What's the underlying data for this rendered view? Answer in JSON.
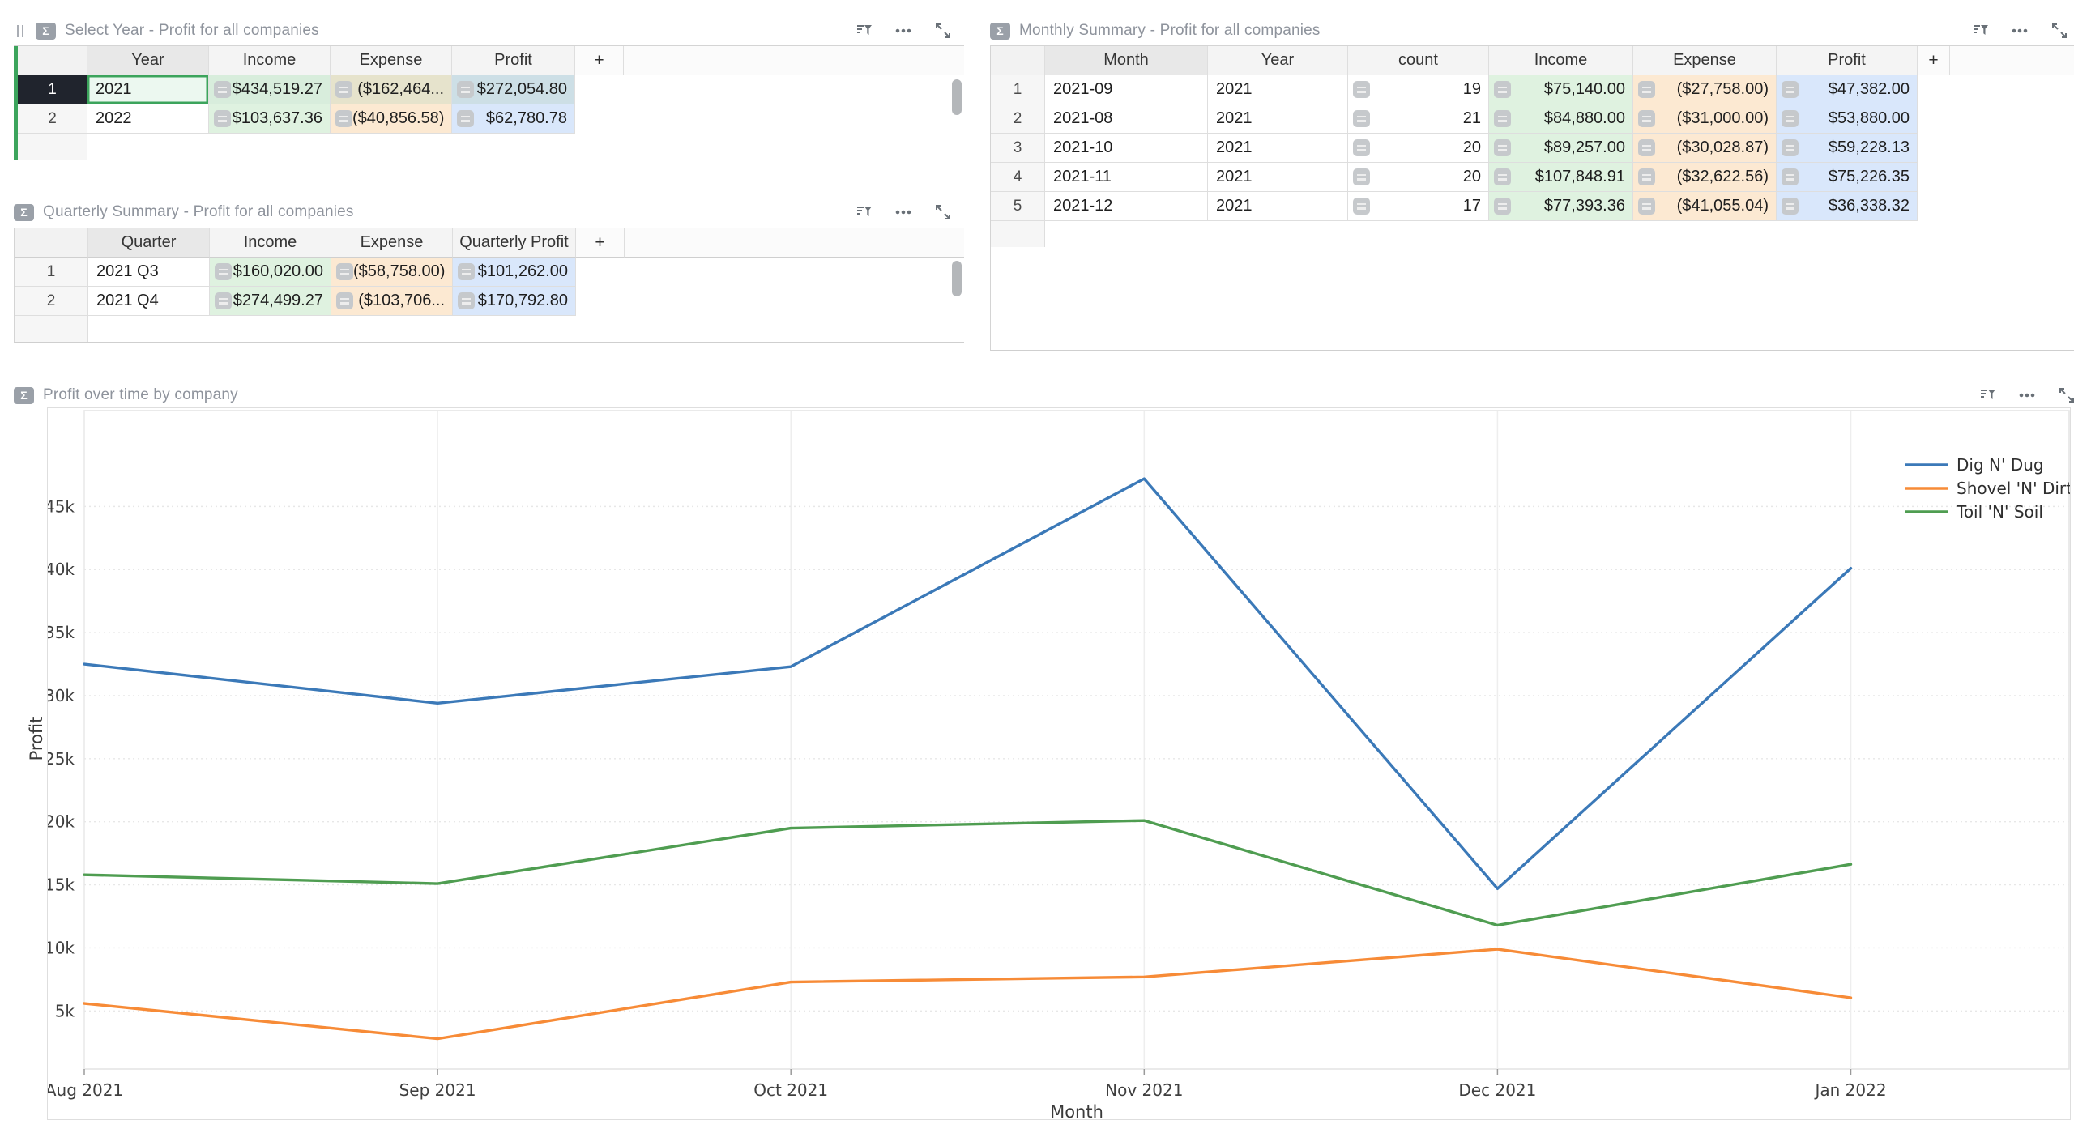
{
  "ui": {
    "sigma": "Σ",
    "plus": "+"
  },
  "icons": {
    "panel_chip": "sigma-icon",
    "drag": "drag-handle-icon",
    "sort": "sort-filter-icon",
    "menu": "more-menu-icon",
    "expand": "expand-icon",
    "cell_chip": "formula-chip-icon",
    "scrollbar": "vertical-scrollbar"
  },
  "colors": {
    "accent_green": "#3ca45c",
    "selected_row_header": "#20242d",
    "tint_income": "#dff2e0",
    "tint_expense": "#fce9d2",
    "tint_profit": "#d9e7fb",
    "line_blue": "#3b79b8",
    "line_orange": "#f78b37",
    "line_green": "#4f9d51"
  },
  "panels": {
    "select_year": {
      "title": "Select Year - Profit for all companies",
      "columns": [
        {
          "label": "Year",
          "type": "text",
          "primary": true
        },
        {
          "label": "Income",
          "type": "money",
          "tint": "green"
        },
        {
          "label": "Expense",
          "type": "money",
          "tint": "orange"
        },
        {
          "label": "Profit",
          "type": "money",
          "tint": "blue"
        }
      ],
      "rows": [
        {
          "num": "1",
          "selected": true,
          "cells": [
            "2021",
            "$434,519.27",
            "($162,464...",
            "$272,054.80"
          ]
        },
        {
          "num": "2",
          "cells": [
            "2022",
            "$103,637.36",
            "($40,856.58)",
            "$62,780.78"
          ]
        }
      ]
    },
    "quarterly": {
      "title": "Quarterly Summary - Profit for all companies",
      "columns": [
        {
          "label": "Quarter",
          "type": "text",
          "primary": true
        },
        {
          "label": "Income",
          "type": "money",
          "tint": "green"
        },
        {
          "label": "Expense",
          "type": "money",
          "tint": "orange"
        },
        {
          "label": "Quarterly Profit",
          "type": "money",
          "tint": "blue"
        }
      ],
      "rows": [
        {
          "num": "1",
          "cells": [
            "2021 Q3",
            "$160,020.00",
            "($58,758.00)",
            "$101,262.00"
          ]
        },
        {
          "num": "2",
          "cells": [
            "2021 Q4",
            "$274,499.27",
            "($103,706...",
            "$170,792.80"
          ]
        }
      ]
    },
    "monthly": {
      "title": "Monthly Summary - Profit for all companies",
      "columns": [
        {
          "label": "Month",
          "type": "text",
          "primary": true
        },
        {
          "label": "Year",
          "type": "text"
        },
        {
          "label": "count",
          "type": "count"
        },
        {
          "label": "Income",
          "type": "money",
          "tint": "green"
        },
        {
          "label": "Expense",
          "type": "money",
          "tint": "orange"
        },
        {
          "label": "Profit",
          "type": "money",
          "tint": "blue"
        }
      ],
      "rows": [
        {
          "num": "1",
          "cells": [
            "2021-09",
            "2021",
            "19",
            "$75,140.00",
            "($27,758.00)",
            "$47,382.00"
          ]
        },
        {
          "num": "2",
          "cells": [
            "2021-08",
            "2021",
            "21",
            "$84,880.00",
            "($31,000.00)",
            "$53,880.00"
          ]
        },
        {
          "num": "3",
          "cells": [
            "2021-10",
            "2021",
            "20",
            "$89,257.00",
            "($30,028.87)",
            "$59,228.13"
          ]
        },
        {
          "num": "4",
          "cells": [
            "2021-11",
            "2021",
            "20",
            "$107,848.91",
            "($32,622.56)",
            "$75,226.35"
          ]
        },
        {
          "num": "5",
          "cells": [
            "2021-12",
            "2021",
            "17",
            "$77,393.36",
            "($41,055.04)",
            "$36,338.32"
          ]
        }
      ]
    },
    "chart_panel": {
      "title": "Profit over time by company"
    }
  },
  "chart_data": {
    "type": "line",
    "title": "Profit over time by company",
    "xlabel": "Month",
    "ylabel": "Profit",
    "x": [
      "Aug 2021",
      "Sep 2021",
      "Oct 2021",
      "Nov 2021",
      "Dec 2021",
      "Jan 2022"
    ],
    "x_axis_span_fraction": 0.89,
    "ylim": [
      400,
      52600
    ],
    "yticks": [
      5000,
      10000,
      15000,
      20000,
      25000,
      30000,
      35000,
      40000,
      45000
    ],
    "ytick_labels": [
      "5k",
      "10k",
      "15k",
      "20k",
      "25k",
      "30k",
      "35k",
      "40k",
      "45k"
    ],
    "grid": true,
    "legend_position": "top-right",
    "series": [
      {
        "name": "Dig N' Dug",
        "color": "#3b79b8",
        "values": [
          32500,
          29400,
          32300,
          47200,
          14700,
          40100
        ]
      },
      {
        "name": "Shovel 'N' Dirt",
        "color": "#f78b37",
        "values": [
          5600,
          2800,
          7300,
          7700,
          9900,
          6050
        ]
      },
      {
        "name": "Toil 'N' Soil",
        "color": "#4f9d51",
        "values": [
          15800,
          15100,
          19500,
          20100,
          11800,
          16630
        ]
      }
    ]
  }
}
